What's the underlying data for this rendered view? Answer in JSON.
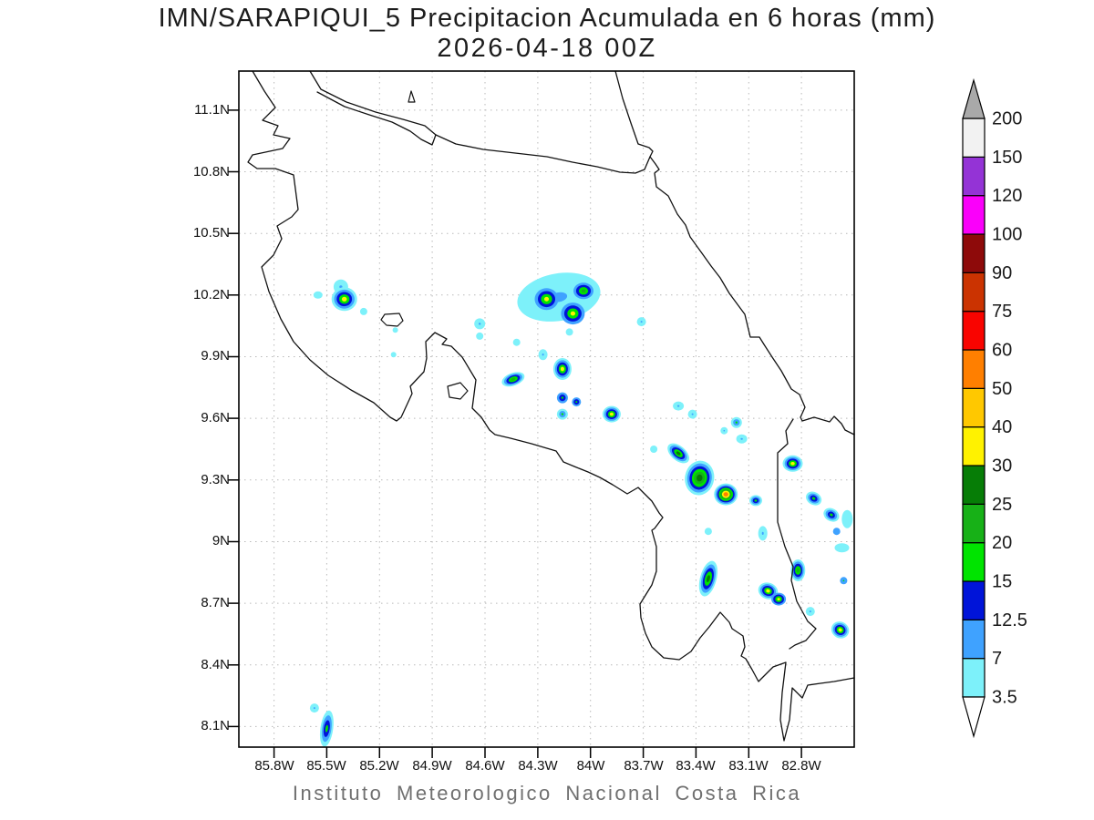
{
  "title": "IMN/SARAPIQUI_5 Precipitacion Acumulada en 6 horas (mm)",
  "subtitle": "2026-04-18 00Z",
  "footer": "Instituto Meteorologico Nacional Costa Rica",
  "chart_data": {
    "type": "heatmap",
    "title": "IMN/SARAPIQUI_5 Precipitacion Acumulada en 6 horas (mm)",
    "valid_time": "2026-04-18 00Z",
    "units": "mm",
    "region": "Costa Rica",
    "grid": "on",
    "proj": {
      "lon_min": -86.0,
      "lon_max": -82.5,
      "lat_min": 8.0,
      "lat_max": 11.29
    },
    "x_ticks": [
      {
        "label": "85.8W",
        "lon": -85.8
      },
      {
        "label": "85.5W",
        "lon": -85.5
      },
      {
        "label": "85.2W",
        "lon": -85.2
      },
      {
        "label": "84.9W",
        "lon": -84.9
      },
      {
        "label": "84.6W",
        "lon": -84.6
      },
      {
        "label": "84.3W",
        "lon": -84.3
      },
      {
        "label": "84W",
        "lon": -84.0
      },
      {
        "label": "83.7W",
        "lon": -83.7
      },
      {
        "label": "83.4W",
        "lon": -83.4
      },
      {
        "label": "83.1W",
        "lon": -83.1
      },
      {
        "label": "82.8W",
        "lon": -82.8
      }
    ],
    "y_ticks": [
      {
        "label": "11.1N",
        "lat": 11.1
      },
      {
        "label": "10.8N",
        "lat": 10.8
      },
      {
        "label": "10.5N",
        "lat": 10.5
      },
      {
        "label": "10.2N",
        "lat": 10.2
      },
      {
        "label": "9.9N",
        "lat": 9.9
      },
      {
        "label": "9.6N",
        "lat": 9.6
      },
      {
        "label": "9.3N",
        "lat": 9.3
      },
      {
        "label": "9N",
        "lat": 9.0
      },
      {
        "label": "8.7N",
        "lat": 8.7
      },
      {
        "label": "8.4N",
        "lat": 8.4
      },
      {
        "label": "8.1N",
        "lat": 8.1
      }
    ],
    "colorbar": {
      "boundaries": [
        "3.5",
        "7",
        "12.5",
        "15",
        "20",
        "25",
        "30",
        "40",
        "50",
        "60",
        "75",
        "90",
        "100",
        "120",
        "150",
        "200"
      ],
      "segment_colors": [
        "#7DF1FA",
        "#3FA2FF",
        "#0014D9",
        "#00E400",
        "#17B117",
        "#067D06",
        "#FFF200",
        "#FFC800",
        "#FF7F00",
        "#F90400",
        "#CB3301",
        "#8E0A0A",
        "#FA00FA",
        "#9433D6",
        "#F2F2F2"
      ],
      "above_color": "#A9A9A9",
      "below_color": "#FFFFFF"
    },
    "cells_schema": [
      "lon",
      "lat",
      "rx_px",
      "ry_px",
      "rotation_deg",
      "levels_outer_to_inner_mm",
      "peak_mm"
    ],
    "cells": [
      [
        -84.18,
        10.19,
        46,
        26,
        -10,
        [
          "3.5",
          "7"
        ],
        7
      ],
      [
        -84.25,
        10.18,
        13,
        12,
        0,
        [
          "7",
          "12.5",
          "15",
          "30"
        ],
        30
      ],
      [
        -84.1,
        10.11,
        13,
        12,
        0,
        [
          "7",
          "12.5",
          "15",
          "30"
        ],
        30
      ],
      [
        -84.04,
        10.22,
        11,
        9,
        0,
        [
          "7",
          "12.5",
          "15",
          "20"
        ],
        20
      ],
      [
        -85.42,
        10.24,
        8,
        8,
        0,
        [
          "3.5",
          "7"
        ],
        7
      ],
      [
        -85.4,
        10.18,
        14,
        13,
        0,
        [
          "3.5",
          "7",
          "12.5",
          "15",
          "30"
        ],
        30
      ],
      [
        -85.55,
        10.2,
        5,
        4,
        0,
        [
          "3.5"
        ],
        3.5
      ],
      [
        -85.29,
        10.12,
        4,
        4,
        0,
        [
          "3.5"
        ],
        3.5
      ],
      [
        -84.63,
        10.06,
        6,
        6,
        0,
        [
          "3.5",
          "7"
        ],
        7
      ],
      [
        -84.44,
        9.79,
        13,
        7,
        -20,
        [
          "3.5",
          "7",
          "12.5",
          "15",
          "20"
        ],
        20
      ],
      [
        -84.16,
        9.84,
        10,
        12,
        0,
        [
          "3.5",
          "7",
          "12.5",
          "15",
          "30"
        ],
        30
      ],
      [
        -84.27,
        9.91,
        5,
        6,
        0,
        [
          "3.5",
          "7"
        ],
        7
      ],
      [
        -84.16,
        9.7,
        6,
        6,
        0,
        [
          "7",
          "12.5",
          "15"
        ],
        15
      ],
      [
        -84.08,
        9.68,
        5,
        5,
        0,
        [
          "7",
          "12.5",
          "15"
        ],
        15
      ],
      [
        -84.16,
        9.62,
        6,
        6,
        0,
        [
          "3.5",
          "7",
          "15"
        ],
        15
      ],
      [
        -83.88,
        9.62,
        10,
        9,
        0,
        [
          "3.5",
          "7",
          "12.5",
          "15",
          "30"
        ],
        30
      ],
      [
        -83.5,
        9.43,
        14,
        8,
        40,
        [
          "3.5",
          "7",
          "12.5",
          "15",
          "25"
        ],
        25
      ],
      [
        -83.38,
        9.31,
        16,
        19,
        10,
        [
          "3.5",
          "7",
          "12.5",
          "15",
          "20",
          "25"
        ],
        25
      ],
      [
        -83.23,
        9.23,
        13,
        12,
        0,
        [
          "3.5",
          "7",
          "12.5",
          "15",
          "20",
          "30",
          "50"
        ],
        50
      ],
      [
        -83.06,
        9.2,
        7,
        6,
        0,
        [
          "3.5",
          "7",
          "12.5",
          "15"
        ],
        15
      ],
      [
        -83.14,
        9.5,
        6,
        5,
        0,
        [
          "3.5",
          "7"
        ],
        7
      ],
      [
        -82.85,
        9.38,
        11,
        9,
        0,
        [
          "3.5",
          "7",
          "12.5",
          "15",
          "30"
        ],
        30
      ],
      [
        -82.73,
        9.21,
        9,
        7,
        30,
        [
          "3.5",
          "7",
          "12.5",
          "15"
        ],
        15
      ],
      [
        -82.63,
        9.13,
        9,
        7,
        30,
        [
          "3.5",
          "7",
          "12.5",
          "15"
        ],
        15
      ],
      [
        -83.33,
        8.82,
        9,
        20,
        15,
        [
          "3.5",
          "7",
          "12.5",
          "15",
          "25"
        ],
        25
      ],
      [
        -82.99,
        8.76,
        11,
        9,
        20,
        [
          "3.5",
          "7",
          "12.5",
          "15",
          "30"
        ],
        30
      ],
      [
        -82.93,
        8.72,
        8,
        7,
        0,
        [
          "7",
          "12.5",
          "15",
          "30"
        ],
        30
      ],
      [
        -82.82,
        8.86,
        8,
        12,
        0,
        [
          "3.5",
          "7",
          "12.5",
          "15",
          "20"
        ],
        20
      ],
      [
        -82.56,
        8.81,
        4,
        4,
        0,
        [
          "7",
          "15"
        ],
        15
      ],
      [
        -82.58,
        8.57,
        10,
        9,
        30,
        [
          "3.5",
          "7",
          "12.5",
          "15",
          "30"
        ],
        30
      ],
      [
        -82.75,
        8.66,
        5,
        5,
        0,
        [
          "3.5",
          "7"
        ],
        7
      ],
      [
        -85.5,
        8.09,
        7,
        20,
        8,
        [
          "3.5",
          "7",
          "12.5",
          "15"
        ],
        15
      ],
      [
        -85.57,
        8.19,
        5,
        5,
        0,
        [
          "3.5",
          "7"
        ],
        7
      ],
      [
        -85.11,
        10.03,
        3,
        3,
        0,
        [
          "3.5"
        ],
        3.5
      ],
      [
        -85.12,
        9.91,
        3,
        3,
        0,
        [
          "3.5"
        ],
        3.5
      ],
      [
        -84.63,
        10.0,
        4,
        4,
        0,
        [
          "3.5"
        ],
        3.5
      ],
      [
        -84.12,
        10.02,
        4,
        4,
        0,
        [
          "3.5"
        ],
        3.5
      ],
      [
        -83.71,
        10.07,
        5,
        5,
        0,
        [
          "3.5",
          "7"
        ],
        7
      ],
      [
        -83.42,
        9.62,
        5,
        5,
        0,
        [
          "3.5",
          "7"
        ],
        7
      ],
      [
        -83.5,
        9.66,
        6,
        5,
        0,
        [
          "3.5",
          "7"
        ],
        7
      ],
      [
        -83.64,
        9.45,
        4,
        4,
        0,
        [
          "3.5"
        ],
        3.5
      ],
      [
        -83.17,
        9.58,
        6,
        6,
        0,
        [
          "3.5",
          "7",
          "15"
        ],
        15
      ],
      [
        -83.24,
        9.54,
        4,
        4,
        0,
        [
          "3.5",
          "7"
        ],
        7
      ],
      [
        -83.33,
        9.05,
        4,
        4,
        0,
        [
          "3.5"
        ],
        3.5
      ],
      [
        -83.02,
        9.04,
        5,
        8,
        0,
        [
          "3.5",
          "7"
        ],
        7
      ],
      [
        -82.57,
        8.97,
        8,
        5,
        0,
        [
          "3.5"
        ],
        3.5
      ],
      [
        -82.54,
        9.11,
        6,
        10,
        0,
        [
          "3.5"
        ],
        3.5
      ],
      [
        -84.42,
        9.97,
        4,
        4,
        0,
        [
          "3.5"
        ],
        3.5
      ],
      [
        -82.6,
        9.05,
        4,
        4,
        0,
        [
          "7"
        ],
        7
      ]
    ]
  }
}
